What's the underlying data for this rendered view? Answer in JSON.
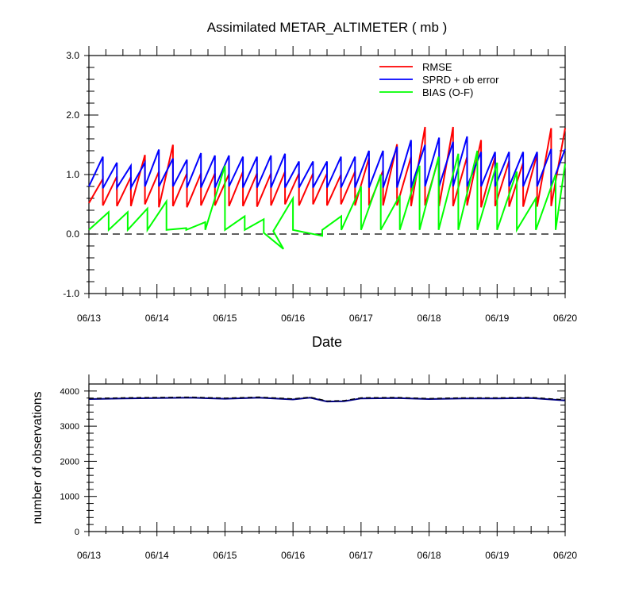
{
  "chart_data": [
    {
      "type": "line",
      "title": "Assimilated METAR_ALTIMETER ( mb )",
      "xlabel": "Date",
      "ylabel": "",
      "x_ticks": [
        "06/13",
        "06/14",
        "06/15",
        "06/16",
        "06/17",
        "06/18",
        "06/19",
        "06/20"
      ],
      "y_ticks": [
        "-1.0",
        "0.0",
        "1.0",
        "2.0",
        "3.0"
      ],
      "xlim": [
        0,
        7
      ],
      "ylim": [
        -1.0,
        3.0
      ],
      "grid": false,
      "zero_line": true,
      "legend_position": "top-right",
      "colors": {
        "rmse": "#ff0000",
        "sprd": "#0000ff",
        "bias": "#00ff00"
      },
      "series": [
        {
          "name": "RMSE",
          "key": "rmse",
          "peaks": [
            0.93,
            0.97,
            0.96,
            1.33,
            1.05,
            1.5,
            1.02,
            1.02,
            1.02,
            1.01,
            1.05,
            1.02,
            1.02,
            1.05,
            1.02,
            1.02,
            1.02,
            1.0,
            1.05,
            1.28,
            1.07,
            1.51,
            1.3,
            1.8,
            1.3,
            1.8,
            1.3,
            1.58,
            1.3,
            1.23,
            1.2,
            1.35,
            1.78
          ],
          "troughs": [
            0.52,
            0.48,
            0.47,
            0.47,
            0.5,
            0.45,
            0.47,
            0.45,
            0.48,
            0.48,
            0.47,
            0.47,
            0.46,
            0.48,
            0.5,
            0.48,
            0.5,
            0.48,
            0.5,
            0.48,
            0.48,
            0.48,
            0.48,
            0.47,
            0.48,
            0.47,
            0.47,
            0.48,
            0.45,
            0.47,
            0.46,
            0.46,
            0.46,
            0.47,
            0.5
          ]
        },
        {
          "name": "SPRD + ob error",
          "key": "sprd",
          "peaks": [
            1.3,
            1.2,
            1.15,
            1.2,
            1.42,
            1.27,
            1.25,
            1.36,
            1.32,
            1.32,
            1.3,
            1.3,
            1.32,
            1.35,
            1.22,
            1.22,
            1.22,
            1.3,
            1.3,
            1.4,
            1.4,
            1.47,
            1.58,
            1.5,
            1.62,
            1.55,
            1.64,
            1.38,
            1.38,
            1.38,
            1.38,
            1.38,
            1.43
          ],
          "troughs": [
            0.8,
            0.77,
            0.78,
            0.78,
            0.8,
            0.8,
            0.8,
            0.78,
            0.78,
            0.78,
            0.8,
            0.78,
            0.78,
            0.78,
            0.78,
            0.78,
            0.78,
            0.78,
            0.78,
            0.78,
            0.78,
            0.78,
            0.78,
            0.78,
            0.8,
            0.8,
            0.8,
            0.8,
            0.8,
            0.8,
            0.8,
            0.8,
            0.8,
            0.8,
            0.78
          ]
        },
        {
          "name": "BIAS (O-F)",
          "key": "bias",
          "points": [
            [
              0,
              0.07
            ],
            [
              0.29,
              0.37
            ],
            [
              0.29,
              0.07
            ],
            [
              0.57,
              0.37
            ],
            [
              0.57,
              0.07
            ],
            [
              0.86,
              0.43
            ],
            [
              0.86,
              0.07
            ],
            [
              1.14,
              0.55
            ],
            [
              1.14,
              0.07
            ],
            [
              1.43,
              0.1
            ],
            [
              1.43,
              0.07
            ],
            [
              1.71,
              0.2
            ],
            [
              1.71,
              0.07
            ],
            [
              2.0,
              1.15
            ],
            [
              2.0,
              0.07
            ],
            [
              2.29,
              0.3
            ],
            [
              2.29,
              0.07
            ],
            [
              2.57,
              0.25
            ],
            [
              2.57,
              0.02
            ],
            [
              2.86,
              -0.25
            ],
            [
              2.71,
              0.05
            ],
            [
              3.0,
              0.6
            ],
            [
              3.0,
              0.07
            ],
            [
              3.43,
              -0.03
            ],
            [
              3.43,
              0.07
            ],
            [
              3.71,
              0.3
            ],
            [
              3.71,
              0.07
            ],
            [
              4.0,
              0.8
            ],
            [
              4.0,
              0.07
            ],
            [
              4.29,
              1.0
            ],
            [
              4.29,
              0.07
            ],
            [
              4.57,
              0.65
            ],
            [
              4.57,
              0.07
            ],
            [
              4.86,
              1.15
            ],
            [
              4.86,
              0.07
            ],
            [
              5.14,
              1.3
            ],
            [
              5.14,
              0.07
            ],
            [
              5.43,
              1.35
            ],
            [
              5.43,
              0.07
            ],
            [
              5.71,
              1.4
            ],
            [
              5.71,
              0.07
            ],
            [
              6.0,
              1.2
            ],
            [
              6.0,
              0.07
            ],
            [
              6.29,
              1.05
            ],
            [
              6.29,
              0.07
            ],
            [
              6.57,
              0.6
            ],
            [
              6.57,
              0.07
            ],
            [
              6.86,
              1.0
            ],
            [
              6.86,
              0.07
            ],
            [
              7.0,
              1.18
            ]
          ]
        }
      ]
    },
    {
      "type": "line",
      "title": "",
      "xlabel": "",
      "ylabel": "number of observations",
      "x_ticks": [
        "06/13",
        "06/14",
        "06/15",
        "06/16",
        "06/17",
        "06/18",
        "06/19",
        "06/20"
      ],
      "y_ticks": [
        "0",
        "1000",
        "2000",
        "3000",
        "4000"
      ],
      "xlim": [
        0,
        7
      ],
      "ylim": [
        0,
        4200
      ],
      "grid": false,
      "colors": {
        "assimilated": "#000080",
        "total": "#000000"
      },
      "series": [
        {
          "name": "",
          "key": "assimilated",
          "x": [
            0,
            0.5,
            1.0,
            1.5,
            2.0,
            2.5,
            3.0,
            3.25,
            3.5,
            3.75,
            4.0,
            4.5,
            5.0,
            5.5,
            6.0,
            6.5,
            7.0
          ],
          "values": [
            3770,
            3790,
            3800,
            3810,
            3780,
            3810,
            3760,
            3810,
            3700,
            3710,
            3790,
            3800,
            3770,
            3790,
            3790,
            3800,
            3730
          ]
        },
        {
          "name": "",
          "key": "total",
          "dashed": true,
          "x": [
            0,
            0.5,
            1.0,
            1.5,
            2.0,
            2.5,
            3.0,
            3.25,
            3.5,
            3.75,
            4.0,
            4.5,
            5.0,
            5.5,
            6.0,
            6.5,
            7.0
          ],
          "values": [
            3790,
            3810,
            3820,
            3830,
            3800,
            3830,
            3780,
            3830,
            3720,
            3730,
            3810,
            3820,
            3790,
            3810,
            3810,
            3820,
            3750
          ]
        }
      ]
    }
  ]
}
